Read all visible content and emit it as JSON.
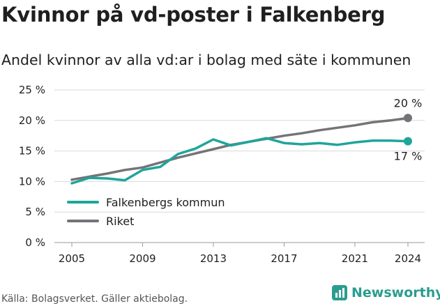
{
  "title": "Kvinnor på vd-poster i Falkenberg",
  "subtitle": "Andel kvinnor av alla vd:ar i bolag med säte i kommunen",
  "source": "Källa: Bolagsverket. Gäller aktiebolag.",
  "brand": "Newsworthy",
  "colors": {
    "falkenberg": "#1fa59a",
    "riket": "#747478",
    "grid": "#d9d9d9",
    "brand": "#2a9d8f"
  },
  "chart_data": {
    "type": "line",
    "x": [
      2005,
      2006,
      2007,
      2008,
      2009,
      2010,
      2011,
      2012,
      2013,
      2014,
      2015,
      2016,
      2017,
      2018,
      2019,
      2020,
      2021,
      2022,
      2023,
      2024
    ],
    "series": [
      {
        "name": "Falkenbergs kommun",
        "values": [
          9.7,
          10.6,
          10.5,
          10.2,
          11.9,
          12.4,
          14.5,
          15.4,
          16.9,
          15.9,
          16.5,
          17.1,
          16.3,
          16.1,
          16.3,
          16.0,
          16.4,
          16.7,
          16.7,
          16.6
        ]
      },
      {
        "name": "Riket",
        "values": [
          10.3,
          10.8,
          11.3,
          11.9,
          12.3,
          13.1,
          13.9,
          14.6,
          15.3,
          16.0,
          16.5,
          17.0,
          17.5,
          17.9,
          18.4,
          18.8,
          19.2,
          19.7,
          20.0,
          20.4
        ]
      }
    ],
    "y_ticks": [
      "0 %",
      "5 %",
      "10 %",
      "15 %",
      "20 %",
      "25 %"
    ],
    "x_ticks": [
      "2005",
      "2009",
      "2013",
      "2017",
      "2021",
      "2024"
    ],
    "end_labels": {
      "falkenberg": "17 %",
      "riket": "20 %"
    },
    "ylim": [
      0,
      25
    ],
    "xlim": [
      2005,
      2024
    ],
    "grid": true,
    "legend_position": "bottom-left"
  }
}
